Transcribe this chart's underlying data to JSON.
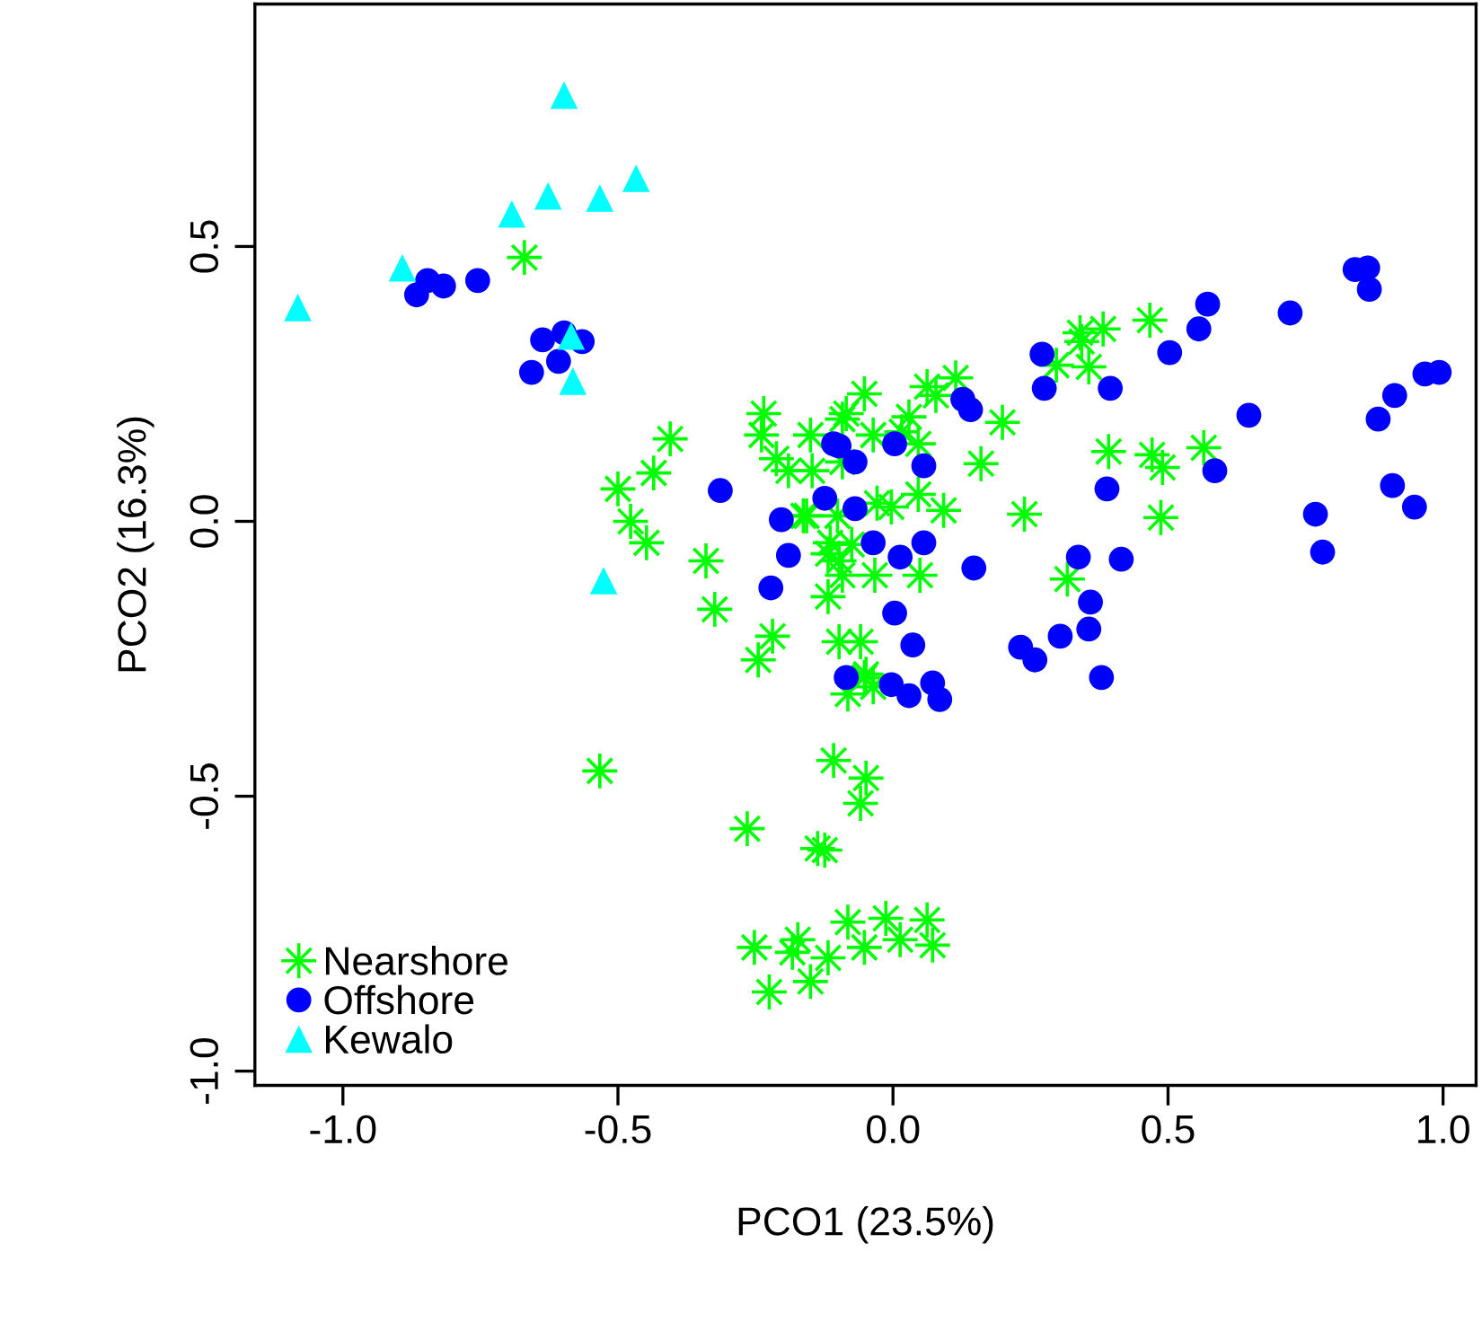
{
  "chart_data": {
    "type": "scatter",
    "xlabel": "PCO1 (23.5%)",
    "ylabel": "PCO2 (16.3%)",
    "xlim": [
      -1.16,
      1.06
    ],
    "ylim": [
      -1.026,
      0.941
    ],
    "xticks": [
      {
        "value": -1.0,
        "label": "-1.0"
      },
      -0.5,
      {
        "value": 0.0,
        "label": "0.0"
      },
      0.5,
      {
        "value": 1.0,
        "label": "1.0"
      }
    ],
    "yticks": [
      {
        "value": -1.0,
        "label": "-1.0"
      },
      -0.5,
      {
        "value": 0.0,
        "label": "0.0"
      },
      0.5
    ],
    "grid": false,
    "legend": "bottom left",
    "series": [
      {
        "name": "Nearshore",
        "color": "#00ff00",
        "marker": "cross",
        "x": [
          -0.67,
          -0.405,
          -0.435,
          -0.5,
          -0.477,
          -0.448,
          -0.34,
          -0.235,
          -0.239,
          -0.15,
          -0.212,
          -0.19,
          -0.147,
          -0.163,
          -0.092,
          -0.092,
          -0.114,
          -0.098,
          -0.324,
          -0.219,
          -0.245,
          -0.118,
          -0.033,
          0.049,
          -0.098,
          -0.059,
          -0.049,
          -0.082,
          -0.036,
          -0.108,
          -0.049,
          -0.059,
          -0.533,
          -0.265,
          -0.137,
          -0.124,
          -0.082,
          -0.013,
          0.062,
          0.072,
          0.013,
          -0.052,
          -0.118,
          -0.173,
          -0.183,
          -0.252,
          -0.15,
          -0.225,
          -0.085,
          -0.052,
          -0.036,
          0.029,
          0.062,
          0.114,
          0.078,
          0.016,
          0.046,
          0.199,
          0.16,
          -0.157,
          -0.101,
          -0.029,
          -0.003,
          0.046,
          0.092,
          0.239,
          -0.075,
          -0.118,
          -0.092,
          0.317,
          -0.052,
          0.34,
          0.382,
          0.467,
          0.356,
          0.297,
          0.343,
          0.392,
          0.471,
          0.49,
          0.565,
          0.487
        ],
        "values": [
          0.48,
          0.15,
          0.088,
          0.059,
          0.0,
          -0.039,
          -0.072,
          0.196,
          0.157,
          0.157,
          0.114,
          0.092,
          0.092,
          0.01,
          0.186,
          0.108,
          -0.039,
          -0.072,
          -0.16,
          -0.209,
          -0.252,
          -0.137,
          -0.098,
          -0.098,
          -0.219,
          -0.219,
          -0.278,
          -0.314,
          -0.301,
          -0.435,
          -0.467,
          -0.513,
          -0.454,
          -0.559,
          -0.595,
          -0.598,
          -0.729,
          -0.722,
          -0.725,
          -0.771,
          -0.761,
          -0.775,
          -0.794,
          -0.761,
          -0.784,
          -0.775,
          -0.837,
          -0.856,
          0.196,
          0.232,
          0.157,
          0.19,
          0.245,
          0.261,
          0.229,
          0.163,
          0.141,
          0.18,
          0.105,
          0.01,
          0.01,
          0.033,
          0.026,
          0.049,
          0.02,
          0.013,
          -0.042,
          -0.059,
          -0.098,
          -0.105,
          -0.284,
          0.343,
          0.35,
          0.366,
          0.281,
          0.284,
          0.327,
          0.127,
          0.121,
          0.098,
          0.134,
          0.007
        ]
      },
      {
        "name": "Offshore",
        "color": "#0000ff",
        "marker": "circle",
        "x": [
          -0.846,
          -0.866,
          -0.817,
          -0.755,
          -0.637,
          -0.598,
          -0.565,
          -0.608,
          -0.657,
          -0.314,
          -0.203,
          -0.19,
          -0.108,
          -0.124,
          0.572,
          0.556,
          0.503,
          0.722,
          0.84,
          0.863,
          0.866,
          0.271,
          0.275,
          0.395,
          0.647,
          0.967,
          0.993,
          0.912,
          0.882,
          0.585,
          0.389,
          0.908,
          0.948,
          0.768,
          0.781,
          0.415,
          0.337,
          0.359,
          0.356,
          0.304,
          0.232,
          0.258,
          0.379,
          0.147,
          0.141,
          0.127,
          0.056,
          0.003,
          -0.098,
          -0.069,
          -0.222,
          -0.069,
          -0.036,
          0.056,
          0.013,
          0.003,
          0.036,
          -0.085,
          -0.003,
          0.029,
          0.072,
          0.085
        ],
        "values": [
          0.438,
          0.412,
          0.428,
          0.438,
          0.33,
          0.343,
          0.327,
          0.291,
          0.271,
          0.056,
          0.003,
          -0.062,
          0.141,
          0.042,
          0.395,
          0.35,
          0.307,
          0.379,
          0.458,
          0.461,
          0.422,
          0.304,
          0.242,
          0.242,
          0.193,
          0.268,
          0.271,
          0.229,
          0.186,
          0.092,
          0.059,
          0.065,
          0.026,
          0.013,
          -0.056,
          -0.069,
          -0.065,
          -0.147,
          -0.196,
          -0.209,
          -0.229,
          -0.252,
          -0.284,
          -0.085,
          0.203,
          0.222,
          0.101,
          0.141,
          0.137,
          0.108,
          -0.121,
          0.023,
          -0.039,
          -0.039,
          -0.065,
          -0.167,
          -0.225,
          -0.284,
          -0.297,
          -0.317,
          -0.294,
          -0.324
        ]
      },
      {
        "name": "Kewalo",
        "color": "#00ffff",
        "marker": "triangle",
        "x": [
          -0.598,
          -0.467,
          -0.627,
          -0.533,
          -0.693,
          -0.892,
          -1.082,
          -0.585,
          -0.582,
          -0.526
        ],
        "values": [
          0.775,
          0.624,
          0.592,
          0.588,
          0.559,
          0.461,
          0.389,
          0.337,
          0.255,
          -0.108
        ]
      }
    ]
  }
}
